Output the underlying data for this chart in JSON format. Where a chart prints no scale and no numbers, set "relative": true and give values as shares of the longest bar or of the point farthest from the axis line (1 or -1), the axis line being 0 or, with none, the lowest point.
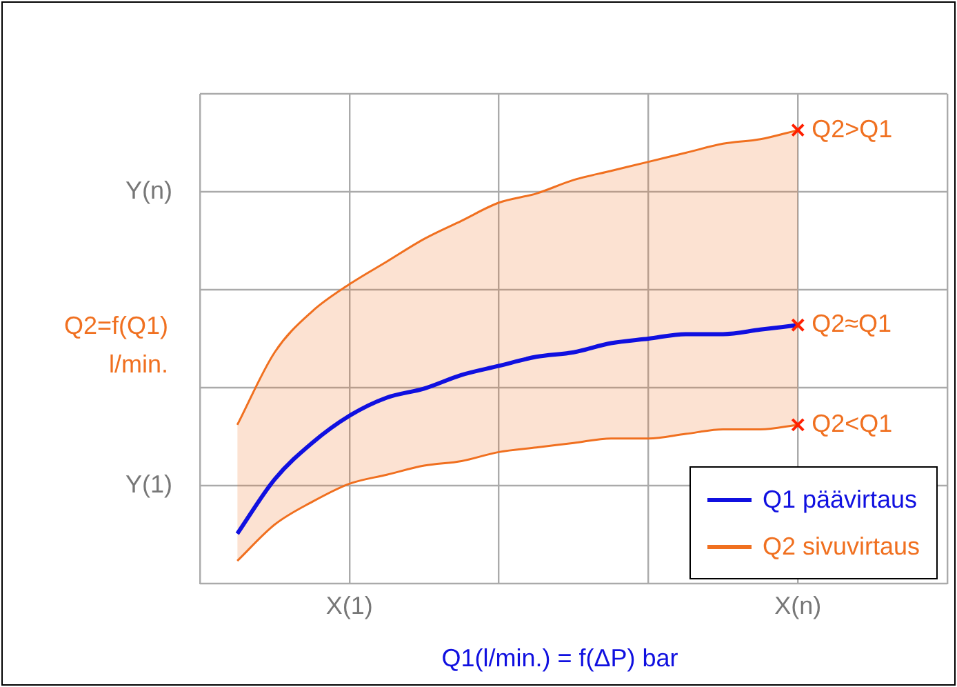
{
  "chart_data": {
    "type": "line",
    "relative": true,
    "xlabel": "Q1(l/min.) = f(ΔP) bar",
    "ylabel": "Q2=f(Q1)\nl/min.",
    "categories": [
      null,
      null,
      null,
      null,
      "X(1)",
      null,
      null,
      null,
      null,
      null,
      null,
      null,
      null,
      null,
      null,
      null,
      "X(n)",
      null,
      null,
      null,
      null
    ],
    "series": [
      {
        "name": "Q1 päävirtaus",
        "color": "#1010e0",
        "values": [
          null,
          0.11,
          0.23,
          0.31,
          0.37,
          0.41,
          0.43,
          0.46,
          0.48,
          0.5,
          0.51,
          0.53,
          0.54,
          0.55,
          0.55,
          0.56,
          0.57,
          null,
          null,
          null,
          null
        ]
      },
      {
        "name": "Q2 sivuvirtaus",
        "type": "area",
        "color": "#f07020",
        "values": [
          null,
          0.35,
          0.51,
          0.6,
          0.66,
          0.71,
          0.76,
          0.8,
          0.84,
          0.86,
          0.89,
          0.91,
          0.93,
          0.95,
          0.97,
          0.98,
          1.0,
          null,
          null,
          null,
          null
        ]
      },
      {
        "type": "line",
        "color": "#f07020",
        "values": [
          null,
          0.05,
          0.13,
          0.18,
          0.22,
          0.24,
          0.26,
          0.27,
          0.29,
          0.3,
          0.31,
          0.32,
          0.32,
          0.33,
          0.34,
          0.34,
          0.35,
          null,
          null,
          null,
          null
        ]
      }
    ],
    "annotations": [
      {
        "text": "Q2>Q1",
        "x": "X(n)",
        "y": 1.0
      },
      {
        "text": "Q2≈Q1",
        "x": "X(n)",
        "y": 0.57
      },
      {
        "text": "Q2<Q1",
        "x": "X(n)",
        "y": 0.35
      },
      "Y(1)",
      "Y(n)"
    ],
    "grid": true,
    "legend": "bottom right",
    "marker": "none"
  }
}
